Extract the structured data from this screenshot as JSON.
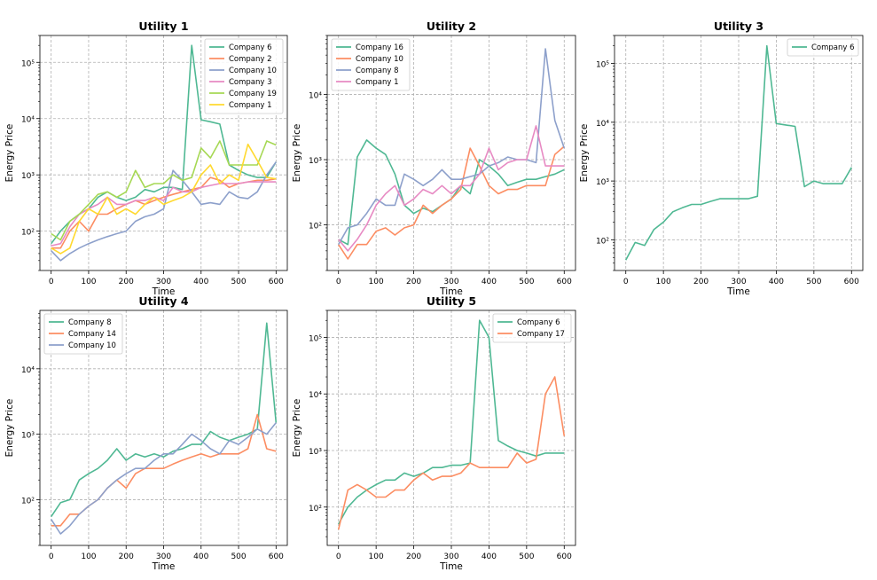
{
  "chart_data": [
    {
      "type": "line",
      "title": "Utility 1",
      "xlabel": "Time",
      "ylabel": "Energy Price",
      "yscale": "log",
      "xlim": [
        -30,
        630
      ],
      "ylim": [
        20,
        300000
      ],
      "xticks": [
        0,
        100,
        200,
        300,
        400,
        500,
        600
      ],
      "yticks": [
        100,
        1000,
        10000,
        100000
      ],
      "ytick_labels": [
        "10²",
        "10³",
        "10⁴",
        "10⁵"
      ],
      "grid": true,
      "legend": "top-right",
      "x": [
        0,
        25,
        50,
        75,
        100,
        125,
        150,
        175,
        200,
        225,
        250,
        275,
        300,
        325,
        350,
        375,
        400,
        425,
        450,
        475,
        500,
        525,
        550,
        575,
        600
      ],
      "series": [
        {
          "name": "Company 6",
          "color": "#4fb893",
          "values": [
            60,
            100,
            150,
            200,
            250,
            400,
            500,
            400,
            350,
            400,
            550,
            500,
            600,
            600,
            550,
            200000,
            9500,
            8800,
            8000,
            1500,
            1200,
            1000,
            900,
            900,
            1700
          ]
        },
        {
          "name": "Company 2",
          "color": "#fc8d62",
          "values": [
            50,
            50,
            100,
            150,
            100,
            200,
            200,
            250,
            300,
            350,
            300,
            350,
            400,
            450,
            500,
            550,
            600,
            900,
            800,
            600,
            700,
            750,
            800,
            800,
            850
          ]
        },
        {
          "name": "Company 10",
          "color": "#8da0cb",
          "values": [
            45,
            30,
            40,
            50,
            60,
            70,
            80,
            90,
            100,
            150,
            180,
            200,
            250,
            1200,
            800,
            500,
            300,
            320,
            300,
            500,
            400,
            380,
            500,
            1000,
            1700
          ]
        },
        {
          "name": "Company 3",
          "color": "#e78ac3",
          "values": [
            55,
            60,
            120,
            200,
            250,
            300,
            400,
            300,
            300,
            350,
            350,
            400,
            350,
            600,
            500,
            500,
            600,
            650,
            700,
            700,
            700,
            750,
            750,
            750,
            750
          ]
        },
        {
          "name": "Company 19",
          "color": "#a6d854",
          "values": [
            90,
            70,
            150,
            200,
            300,
            450,
            500,
            400,
            500,
            1200,
            600,
            700,
            700,
            1000,
            800,
            900,
            3000,
            2000,
            4000,
            1500,
            1500,
            1500,
            1500,
            4000,
            3400
          ]
        },
        {
          "name": "Company 1",
          "color": "#ffd92f",
          "values": [
            50,
            40,
            50,
            150,
            250,
            200,
            400,
            200,
            250,
            200,
            300,
            400,
            300,
            350,
            400,
            500,
            1000,
            1500,
            700,
            1000,
            800,
            3500,
            1800,
            900,
            850
          ]
        }
      ]
    },
    {
      "type": "line",
      "title": "Utility 2",
      "xlabel": "Time",
      "ylabel": "Energy Price",
      "yscale": "log",
      "xlim": [
        -30,
        630
      ],
      "ylim": [
        20,
        80000
      ],
      "xticks": [
        0,
        100,
        200,
        300,
        400,
        500,
        600
      ],
      "yticks": [
        100,
        1000,
        10000
      ],
      "ytick_labels": [
        "10²",
        "10³",
        "10⁴"
      ],
      "grid": true,
      "legend": "top-left",
      "x": [
        0,
        25,
        50,
        75,
        100,
        125,
        150,
        175,
        200,
        225,
        250,
        275,
        300,
        325,
        350,
        375,
        400,
        425,
        450,
        475,
        500,
        525,
        550,
        575,
        600
      ],
      "series": [
        {
          "name": "Company 16",
          "color": "#4fb893",
          "values": [
            60,
            50,
            1100,
            2000,
            1500,
            1200,
            600,
            200,
            150,
            180,
            160,
            200,
            250,
            400,
            300,
            1000,
            800,
            600,
            400,
            450,
            500,
            500,
            550,
            600,
            700
          ]
        },
        {
          "name": "Company 10",
          "color": "#fc8d62",
          "values": [
            50,
            30,
            50,
            50,
            80,
            90,
            70,
            90,
            100,
            200,
            150,
            200,
            250,
            350,
            1500,
            800,
            400,
            300,
            350,
            350,
            400,
            400,
            400,
            1200,
            1600
          ]
        },
        {
          "name": "Company 8",
          "color": "#8da0cb",
          "values": [
            50,
            90,
            100,
            150,
            250,
            200,
            200,
            600,
            500,
            400,
            500,
            700,
            500,
            500,
            550,
            600,
            800,
            900,
            1100,
            1000,
            1000,
            900,
            50000,
            4000,
            1500
          ]
        },
        {
          "name": "Company 1",
          "color": "#e78ac3",
          "values": [
            60,
            40,
            60,
            100,
            200,
            300,
            400,
            200,
            250,
            350,
            300,
            400,
            300,
            400,
            400,
            600,
            1500,
            700,
            900,
            1000,
            1000,
            3300,
            800,
            800,
            800
          ]
        }
      ]
    },
    {
      "type": "line",
      "title": "Utility 3",
      "xlabel": "Time",
      "ylabel": "Energy Price",
      "yscale": "log",
      "xlim": [
        -30,
        630
      ],
      "ylim": [
        30,
        300000
      ],
      "xticks": [
        0,
        100,
        200,
        300,
        400,
        500,
        600
      ],
      "yticks": [
        100,
        1000,
        10000,
        100000
      ],
      "ytick_labels": [
        "10²",
        "10³",
        "10⁴",
        "10⁵"
      ],
      "grid": true,
      "legend": "top-right",
      "x": [
        0,
        25,
        50,
        75,
        100,
        125,
        150,
        175,
        200,
        225,
        250,
        275,
        300,
        325,
        350,
        375,
        400,
        425,
        450,
        475,
        500,
        525,
        550,
        575,
        600
      ],
      "series": [
        {
          "name": "Company 6",
          "color": "#4fb893",
          "values": [
            45,
            90,
            80,
            150,
            200,
            300,
            350,
            400,
            400,
            450,
            500,
            500,
            500,
            500,
            550,
            200000,
            9500,
            9000,
            8500,
            800,
            1000,
            900,
            900,
            900,
            1700
          ]
        }
      ]
    },
    {
      "type": "line",
      "title": "Utility 4",
      "xlabel": "Time",
      "ylabel": "Energy Price",
      "yscale": "log",
      "xlim": [
        -30,
        630
      ],
      "ylim": [
        20,
        78000
      ],
      "xticks": [
        0,
        100,
        200,
        300,
        400,
        500,
        600
      ],
      "yticks": [
        100,
        1000,
        10000
      ],
      "ytick_labels": [
        "10²",
        "10³",
        "10⁴"
      ],
      "grid": true,
      "legend": "top-left",
      "x": [
        0,
        25,
        50,
        75,
        100,
        125,
        150,
        175,
        200,
        225,
        250,
        275,
        300,
        325,
        350,
        375,
        400,
        425,
        450,
        475,
        500,
        525,
        550,
        575,
        600
      ],
      "series": [
        {
          "name": "Company 8",
          "color": "#4fb893",
          "values": [
            55,
            90,
            100,
            200,
            250,
            300,
            400,
            600,
            400,
            500,
            450,
            500,
            450,
            550,
            600,
            700,
            700,
            1100,
            900,
            800,
            900,
            1000,
            1200,
            50000,
            1500
          ]
        },
        {
          "name": "Company 14",
          "color": "#fc8d62",
          "values": [
            40,
            40,
            60,
            60,
            80,
            100,
            150,
            200,
            150,
            250,
            300,
            300,
            300,
            350,
            400,
            450,
            500,
            450,
            500,
            500,
            500,
            600,
            2000,
            600,
            550
          ]
        },
        {
          "name": "Company 10",
          "color": "#8da0cb",
          "values": [
            50,
            30,
            40,
            60,
            80,
            100,
            150,
            200,
            250,
            300,
            300,
            400,
            500,
            500,
            700,
            1000,
            800,
            600,
            500,
            800,
            700,
            900,
            1200,
            1000,
            1500
          ]
        }
      ]
    },
    {
      "type": "line",
      "title": "Utility 5",
      "xlabel": "Time",
      "ylabel": "Energy Price",
      "yscale": "log",
      "xlim": [
        -30,
        630
      ],
      "ylim": [
        21,
        300000
      ],
      "xticks": [
        0,
        100,
        200,
        300,
        400,
        500,
        600
      ],
      "yticks": [
        100,
        1000,
        10000,
        100000
      ],
      "ytick_labels": [
        "10²",
        "10³",
        "10⁴",
        "10⁵"
      ],
      "grid": true,
      "legend": "top-right",
      "x": [
        0,
        25,
        50,
        75,
        100,
        125,
        150,
        175,
        200,
        225,
        250,
        275,
        300,
        325,
        350,
        375,
        400,
        425,
        450,
        475,
        500,
        525,
        550,
        575,
        600
      ],
      "series": [
        {
          "name": "Company 6",
          "color": "#4fb893",
          "values": [
            50,
            100,
            150,
            200,
            250,
            300,
            300,
            400,
            350,
            400,
            500,
            500,
            550,
            550,
            600,
            200000,
            100000,
            1500,
            1200,
            1000,
            900,
            800,
            900,
            900,
            900
          ]
        },
        {
          "name": "Company 17",
          "color": "#fc8d62",
          "values": [
            40,
            200,
            250,
            200,
            150,
            150,
            200,
            200,
            300,
            400,
            300,
            350,
            350,
            400,
            600,
            500,
            500,
            500,
            500,
            900,
            600,
            700,
            10000,
            20000,
            1800
          ]
        }
      ]
    }
  ]
}
